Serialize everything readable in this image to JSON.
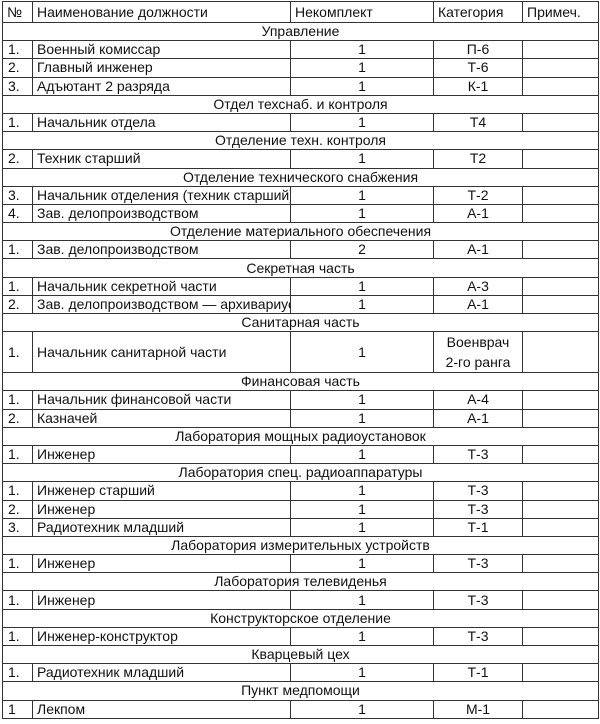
{
  "headers": [
    "№",
    "Наименование должности",
    "Некомплект",
    "Категория",
    "Примеч."
  ],
  "sections": [
    {
      "title": "Управление",
      "rows": [
        {
          "no": "1.",
          "name": "Военный комиссар",
          "count": "1",
          "category": "П-6",
          "note": ""
        },
        {
          "no": "2.",
          "name": "Главный инженер",
          "count": "1",
          "category": "Т-6",
          "note": ""
        },
        {
          "no": "3.",
          "name": "Адъютант 2 разряда",
          "count": "1",
          "category": "К-1",
          "note": ""
        }
      ]
    },
    {
      "title": "Отдел техснаб. и контроля",
      "rows": [
        {
          "no": "1.",
          "name": "Начальник отдела",
          "count": "1",
          "category": "Т4",
          "note": ""
        }
      ]
    },
    {
      "title": "Отделение техн. контроля",
      "rows": [
        {
          "no": "2.",
          "name": "Техник старший",
          "count": "1",
          "category": "Т2",
          "note": ""
        }
      ]
    },
    {
      "title": "Отделение технического снабжения",
      "rows": [
        {
          "no": "3.",
          "name": "Начальник отделения (техник старший)",
          "count": "1",
          "category": "Т-2",
          "note": ""
        },
        {
          "no": "4.",
          "name": "Зав. делопроизводством",
          "count": "1",
          "category": "А-1",
          "note": ""
        }
      ]
    },
    {
      "title": "Отделение материального обеспечения",
      "rows": [
        {
          "no": "1.",
          "name": "Зав. делопроизводством",
          "count": "2",
          "category": "А-1",
          "note": ""
        }
      ]
    },
    {
      "title": "Секретная часть",
      "rows": [
        {
          "no": "1.",
          "name": "Начальник секретной части",
          "count": "1",
          "category": "А-3",
          "note": ""
        },
        {
          "no": "2.",
          "name": "Зав. делопроизводством — архивариус",
          "count": "1",
          "category": "А-1",
          "note": ""
        }
      ]
    },
    {
      "title": "Санитарная часть",
      "rows": [
        {
          "no": "1.",
          "name": "Начальник санитарной части",
          "count": "1",
          "category": "Военврач",
          "category_line2": "2-го ранга",
          "note": ""
        }
      ]
    },
    {
      "title": "Финансовая часть",
      "rows": [
        {
          "no": "1.",
          "name": "Начальник финансовой части",
          "count": "1",
          "category": "А-4",
          "note": ""
        },
        {
          "no": "2.",
          "name": "Казначей",
          "count": "1",
          "category": "А-1",
          "note": ""
        }
      ]
    },
    {
      "title": "Лаборатория мощных радиоустановок",
      "rows": [
        {
          "no": "1.",
          "name": "Инженер",
          "count": "1",
          "category": "Т-3",
          "note": ""
        }
      ]
    },
    {
      "title": "Лаборатория спец. радиоаппаратуры",
      "rows": [
        {
          "no": "1.",
          "name": "Инженер старший",
          "count": "1",
          "category": "Т-3",
          "note": ""
        },
        {
          "no": "2.",
          "name": "Инженер",
          "count": "1",
          "category": "Т-3",
          "note": ""
        },
        {
          "no": "3.",
          "name": "Радиотехник младший",
          "count": "1",
          "category": "Т-1",
          "note": ""
        }
      ]
    },
    {
      "title": "Лаборатория измерительных устройств",
      "rows": [
        {
          "no": "1.",
          "name": "Инженер",
          "count": "1",
          "category": "Т-3",
          "note": ""
        }
      ]
    },
    {
      "title": "Лаборатория телевиденья",
      "rows": [
        {
          "no": "1.",
          "name": "Инженер",
          "count": "1",
          "category": "Т-3",
          "note": ""
        }
      ]
    },
    {
      "title": "Конструкторское отделение",
      "rows": [
        {
          "no": "1.",
          "name": "Инженер-конструктор",
          "count": "1",
          "category": "Т-3",
          "note": ""
        }
      ]
    },
    {
      "title": "Кварцевый цех",
      "rows": [
        {
          "no": "1.",
          "name": "Радиотехник младший",
          "count": "1",
          "category": "Т-1",
          "note": ""
        }
      ]
    },
    {
      "title": "Пункт медпомощи",
      "rows": [
        {
          "no": "1",
          "name": "Лекпом",
          "count": "1",
          "category": "М-1",
          "note": ""
        }
      ]
    }
  ]
}
